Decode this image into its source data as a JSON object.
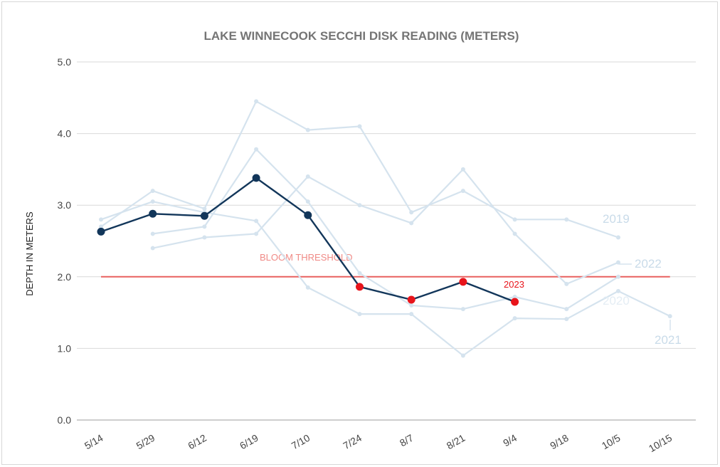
{
  "chart_data": {
    "type": "line",
    "title": "LAKE WINNECOOK SECCHI DISK READING (METERS)",
    "xlabel": "",
    "ylabel": "DEPTH IN METERS",
    "categories": [
      "5/14",
      "5/29",
      "6/12",
      "6/19",
      "7/10",
      "7/24",
      "8/7",
      "8/21",
      "9/4",
      "9/18",
      "10/5",
      "10/15"
    ],
    "ylim": [
      0,
      5
    ],
    "yticks": [
      "0.0",
      "1.0",
      "2.0",
      "3.0",
      "4.0",
      "5.0"
    ],
    "grid": true,
    "series": [
      {
        "name": "2019",
        "color": "#d5e3ee",
        "values": [
          2.7,
          3.2,
          2.95,
          4.45,
          4.05,
          4.1,
          2.9,
          3.2,
          2.8,
          2.8,
          2.55,
          null
        ]
      },
      {
        "name": "2020",
        "color": "#d5e3ee",
        "values": [
          null,
          2.6,
          2.7,
          3.78,
          3.05,
          2.05,
          1.6,
          1.55,
          1.72,
          1.55,
          2.0,
          null
        ]
      },
      {
        "name": "2021",
        "color": "#d5e3ee",
        "values": [
          2.8,
          3.05,
          2.9,
          2.78,
          1.85,
          1.48,
          1.48,
          0.9,
          1.42,
          1.41,
          1.8,
          1.45
        ]
      },
      {
        "name": "2022",
        "color": "#d5e3ee",
        "values": [
          null,
          2.4,
          2.55,
          2.6,
          3.4,
          3.0,
          2.75,
          3.5,
          2.6,
          1.9,
          2.2,
          null
        ]
      },
      {
        "name": "2023",
        "color": "#12365a",
        "below_threshold_color": "#e8141b",
        "values": [
          2.63,
          2.88,
          2.85,
          3.38,
          2.86,
          1.86,
          1.68,
          1.93,
          1.65,
          null,
          null,
          null
        ]
      }
    ],
    "threshold": {
      "label": "BLOOM THRESHOLD",
      "value": 2.0,
      "color": "#e8605f"
    },
    "series_labels": {
      "2019": "2019",
      "2020": "2020",
      "2021": "2021",
      "2022": "2022",
      "2023": "2023"
    }
  }
}
